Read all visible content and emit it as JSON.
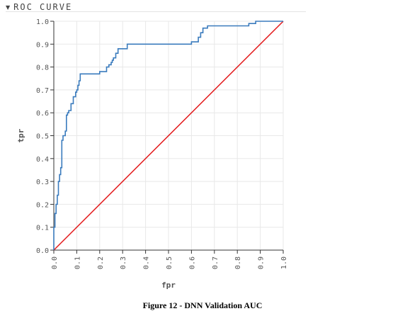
{
  "header": {
    "title": "ROC CURVE",
    "icon": "caret-down-icon"
  },
  "caption": "Figure 12 - DNN Validation AUC",
  "colors": {
    "roc": "#3a7bbd",
    "diagonal": "#e31a1c",
    "grid": "#e8e8e8",
    "axis": "#333333",
    "text": "#555555"
  },
  "chart_data": {
    "type": "line",
    "xlabel": "fpr",
    "ylabel": "tpr",
    "xlim": [
      0,
      1
    ],
    "ylim": [
      0,
      1
    ],
    "xticks": [
      "0.0",
      "0.1",
      "0.2",
      "0.3",
      "0.4",
      "0.5",
      "0.6",
      "0.7",
      "0.8",
      "0.9",
      "1.0"
    ],
    "yticks": [
      "0.0",
      "0.1",
      "0.2",
      "0.3",
      "0.4",
      "0.5",
      "0.6",
      "0.7",
      "0.8",
      "0.9",
      "1.0"
    ],
    "grid": true,
    "legend": "none",
    "series": [
      {
        "x": [
          0,
          0,
          0.005,
          0.005,
          0.01,
          0.01,
          0.015,
          0.015,
          0.02,
          0.02,
          0.025,
          0.025,
          0.03,
          0.03,
          0.035,
          0.035,
          0.04,
          0.04,
          0.05,
          0.05,
          0.055,
          0.055,
          0.06,
          0.06,
          0.065,
          0.065,
          0.075,
          0.075,
          0.085,
          0.085,
          0.095,
          0.095,
          0.1,
          0.1,
          0.105,
          0.105,
          0.11,
          0.11,
          0.115,
          0.115,
          0.13,
          0.13,
          0.2,
          0.2,
          0.23,
          0.23,
          0.24,
          0.24,
          0.25,
          0.25,
          0.255,
          0.255,
          0.26,
          0.26,
          0.27,
          0.27,
          0.28,
          0.28,
          0.29,
          0.29,
          0.32,
          0.32,
          0.6,
          0.6,
          0.63,
          0.63,
          0.64,
          0.64,
          0.65,
          0.65,
          0.67,
          0.67,
          0.85,
          0.85,
          0.88,
          0.88,
          0.9,
          0.9,
          1.0
        ],
        "y": [
          0,
          0.1,
          0.1,
          0.16,
          0.16,
          0.2,
          0.2,
          0.24,
          0.24,
          0.3,
          0.3,
          0.33,
          0.33,
          0.36,
          0.36,
          0.48,
          0.48,
          0.5,
          0.5,
          0.52,
          0.52,
          0.59,
          0.59,
          0.6,
          0.6,
          0.61,
          0.61,
          0.64,
          0.64,
          0.67,
          0.67,
          0.69,
          0.69,
          0.7,
          0.7,
          0.72,
          0.72,
          0.74,
          0.74,
          0.77,
          0.77,
          0.77,
          0.77,
          0.78,
          0.78,
          0.8,
          0.8,
          0.81,
          0.81,
          0.82,
          0.82,
          0.83,
          0.83,
          0.84,
          0.84,
          0.86,
          0.86,
          0.88,
          0.88,
          0.88,
          0.88,
          0.9,
          0.9,
          0.91,
          0.91,
          0.93,
          0.93,
          0.95,
          0.95,
          0.97,
          0.97,
          0.98,
          0.98,
          0.99,
          0.99,
          1.0,
          1.0,
          1.0,
          1.0
        ]
      },
      {
        "x": [
          0,
          1
        ],
        "y": [
          0,
          1
        ]
      }
    ]
  }
}
